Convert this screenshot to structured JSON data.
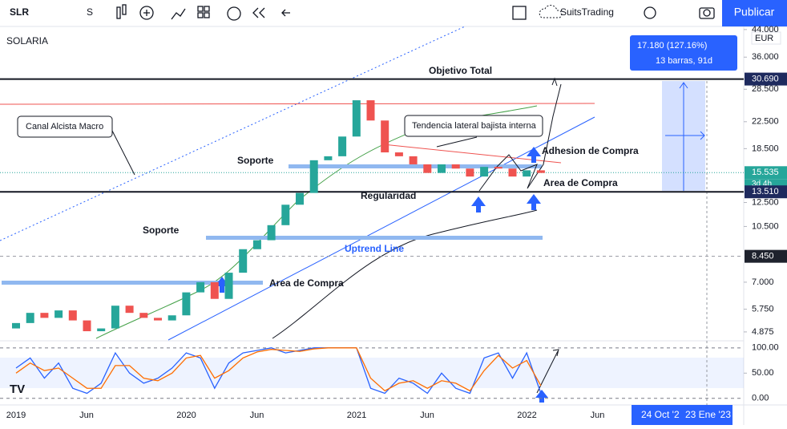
{
  "toolbar": {
    "symbol": "SLR",
    "interval": "S",
    "account": "SuitsTrading",
    "publish": "Publicar"
  },
  "chart_data": {
    "type": "candlestick",
    "title": "SOLARIA",
    "currency": "EUR",
    "log_scale": true,
    "ylim": [
      4.57,
      45
    ],
    "yticks": [
      {
        "value": 44,
        "label": "44.000"
      },
      {
        "value": 36,
        "label": "36.000"
      },
      {
        "value": 28.5,
        "label": "28.500"
      },
      {
        "value": 22.5,
        "label": "22.500"
      },
      {
        "value": 18.5,
        "label": "18.500"
      },
      {
        "value": 12.5,
        "label": "12.500"
      },
      {
        "value": 10.5,
        "label": "10.500"
      },
      {
        "value": 7,
        "label": "7.000"
      },
      {
        "value": 5.75,
        "label": "5.750"
      },
      {
        "value": 4.875,
        "label": "4.875"
      }
    ],
    "time_labels": [
      "2019",
      "Jun",
      "2020",
      "Jun",
      "2021",
      "Jun",
      "2022",
      "Jun"
    ],
    "open": [
      5.0,
      5.2,
      5.6,
      5.4,
      5.7,
      5.3,
      4.9,
      5.0,
      5.9,
      5.6,
      5.4,
      5.3,
      5.5,
      6.5,
      7.0,
      6.2,
      7.5,
      8.9,
      9.5,
      10.6,
      12.3,
      13.4,
      17.0,
      17.5,
      20.2,
      26.3,
      22.7,
      18.0,
      17.5,
      16.5,
      15.5,
      16.5,
      16.0,
      15.1,
      16.2,
      16.0,
      15.1,
      15.8
    ],
    "close": [
      5.2,
      5.6,
      5.4,
      5.7,
      5.3,
      4.9,
      5.0,
      5.9,
      5.6,
      5.4,
      5.3,
      5.5,
      6.5,
      7.0,
      6.2,
      7.5,
      8.9,
      9.5,
      10.6,
      12.3,
      13.4,
      17.0,
      17.5,
      20.2,
      26.3,
      22.7,
      18.0,
      17.5,
      16.5,
      15.5,
      16.5,
      16.0,
      15.1,
      16.2,
      16.0,
      15.1,
      15.8,
      15.5
    ],
    "up_color": "#26a69a",
    "down_color": "#ef5350",
    "levels": [
      {
        "value": 30.69,
        "label": "30.690",
        "color": "#1e2a5e"
      },
      {
        "value": 15.535,
        "label": "15.535",
        "color": "#26a69a"
      },
      {
        "value": 13.51,
        "label": "13.510",
        "color": "#1e2a5e"
      },
      {
        "value": 8.45,
        "label": "8.450",
        "color": "#1e222d"
      }
    ],
    "countdown": "3d 4h",
    "annotations": {
      "target": "Objetivo Total",
      "channel": "Canal Alcista Macro",
      "lateral": "Tendencia lateral bajista interna",
      "support_1": "Soporte",
      "support_2": "Soporte",
      "adhesion": "Adhesion de Compra",
      "buy_area_1": "Area de Compra",
      "buy_area_2": "Area de Compra",
      "regularity": "Regularidad",
      "uptrend": "Uptrend Line"
    },
    "measure": {
      "change": "17.180 (127.16%)",
      "span": "13 barras, 91d"
    },
    "oscillator": {
      "ylim": [
        -13,
        114
      ],
      "yticks": [
        {
          "value": 100,
          "label": "100.00"
        },
        {
          "value": 50,
          "label": "50.00"
        },
        {
          "value": 0,
          "label": "0.00"
        }
      ],
      "k": [
        60,
        80,
        40,
        70,
        20,
        10,
        30,
        90,
        50,
        30,
        40,
        60,
        90,
        80,
        20,
        70,
        90,
        95,
        100,
        90,
        95,
        100,
        100,
        100,
        100,
        20,
        10,
        40,
        30,
        10,
        50,
        20,
        10,
        80,
        90,
        40,
        90,
        10
      ],
      "d": [
        50,
        70,
        55,
        60,
        40,
        20,
        20,
        65,
        65,
        40,
        35,
        50,
        80,
        85,
        40,
        55,
        80,
        92,
        97,
        95,
        93,
        98,
        100,
        100,
        100,
        40,
        15,
        30,
        35,
        20,
        35,
        30,
        15,
        55,
        85,
        60,
        75,
        25
      ],
      "k_color": "#2962ff",
      "d_color": "#ff6d00"
    },
    "date_range": {
      "from": "24 Oct '2",
      "to": "23 Ene '23"
    }
  }
}
